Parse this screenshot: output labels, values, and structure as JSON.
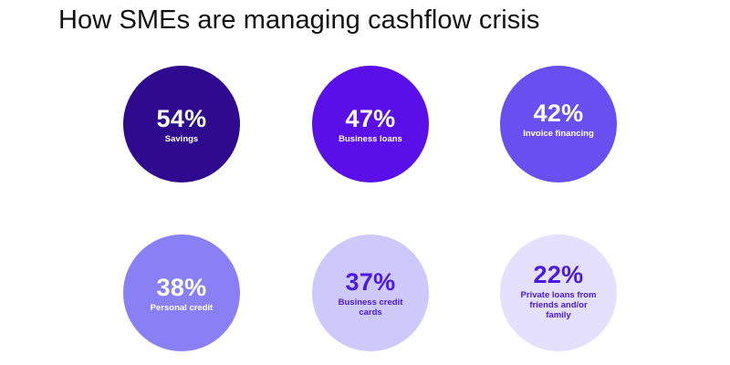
{
  "chart_data": {
    "type": "bubble",
    "title": "How SMEs are managing cashflow crisis",
    "unit": "%",
    "items": [
      {
        "label": "Savings",
        "value": 54,
        "value_text": "54%",
        "color": "#2e0a8f",
        "text_color": "#ffffff"
      },
      {
        "label": "Business loans",
        "value": 47,
        "value_text": "47%",
        "color": "#5b0fe8",
        "text_color": "#ffffff"
      },
      {
        "label": "Invoice financing",
        "value": 42,
        "value_text": "42%",
        "color": "#6a4ff0",
        "text_color": "#ffffff"
      },
      {
        "label": "Personal credit",
        "value": 38,
        "value_text": "38%",
        "color": "#8a80f6",
        "text_color": "#ffffff"
      },
      {
        "label": "Business credit cards",
        "value": 37,
        "value_text": "37%",
        "color": "#cfc8fb",
        "text_color": "#4a1ae0"
      },
      {
        "label": "Private loans from friends and/or family",
        "value": 22,
        "value_text": "22%",
        "color": "#e4e0fd",
        "text_color": "#4a1ae0"
      }
    ]
  }
}
